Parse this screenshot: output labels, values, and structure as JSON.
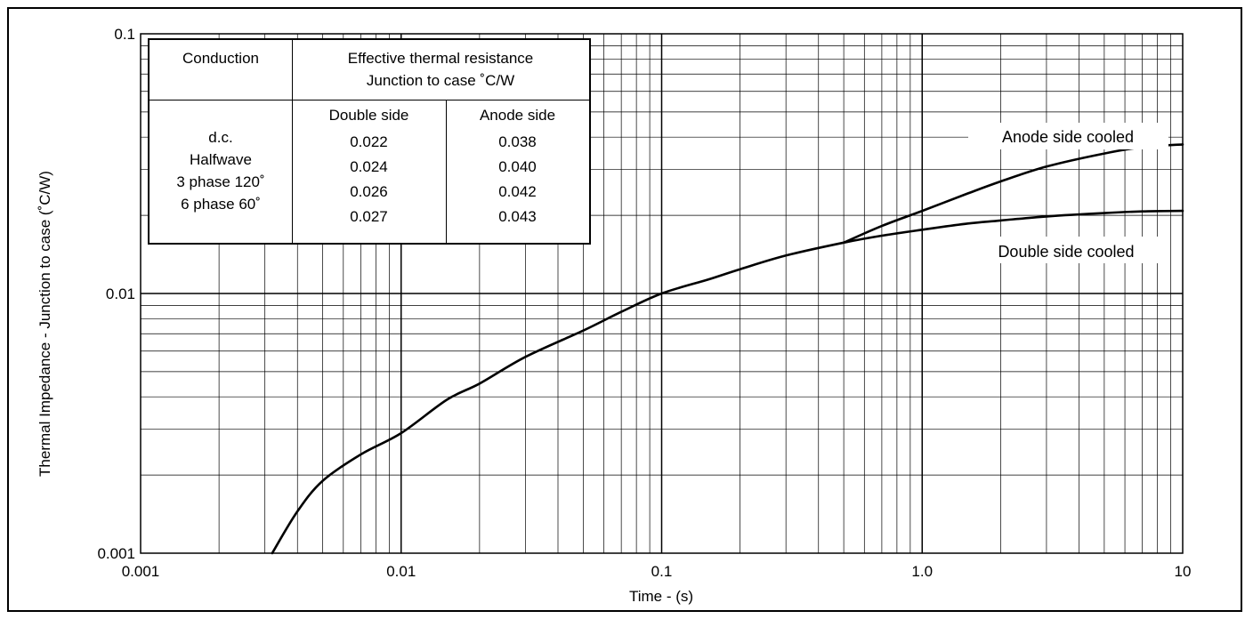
{
  "chart_data": {
    "type": "line",
    "xlabel": "Time - (s)",
    "ylabel": "Thermal Impedance - Junction to case (˚C/W)",
    "x_scale": "log",
    "y_scale": "log",
    "xlim": [
      0.001,
      10
    ],
    "ylim": [
      0.001,
      0.1
    ],
    "x_ticks": [
      "0.001",
      "0.01",
      "0.1",
      "1.0",
      "10"
    ],
    "y_ticks": [
      "0.001",
      "0.01",
      "0.1"
    ],
    "grid": true,
    "series": [
      {
        "name": "Double side cooled",
        "x": [
          0.0032,
          0.004,
          0.005,
          0.007,
          0.01,
          0.015,
          0.02,
          0.03,
          0.05,
          0.07,
          0.1,
          0.15,
          0.2,
          0.3,
          0.5,
          0.7,
          1.0,
          1.5,
          2,
          3,
          5,
          7,
          10
        ],
        "y": [
          0.001,
          0.00145,
          0.0019,
          0.0024,
          0.0029,
          0.0039,
          0.0045,
          0.0057,
          0.0072,
          0.0085,
          0.01,
          0.0113,
          0.0124,
          0.014,
          0.0157,
          0.0167,
          0.0176,
          0.0186,
          0.0191,
          0.0198,
          0.0204,
          0.0207,
          0.0208
        ]
      },
      {
        "name": "Anode side cooled",
        "x": [
          0.5,
          0.7,
          1.0,
          1.5,
          2,
          3,
          5,
          7,
          10
        ],
        "y": [
          0.0157,
          0.0182,
          0.0208,
          0.0243,
          0.027,
          0.0308,
          0.0346,
          0.0366,
          0.0375
        ]
      }
    ],
    "curve_labels": {
      "anode": "Anode side cooled",
      "double": "Double side cooled"
    },
    "table": {
      "header_col1": "Conduction",
      "header_col2_line1": "Effective thermal resistance",
      "header_col2_line2": "Junction to case ˚C/W",
      "sub_double": "Double side",
      "sub_anode": "Anode side",
      "rows": [
        {
          "conduction": "d.c.",
          "double": "0.022",
          "anode": "0.038"
        },
        {
          "conduction": "Halfwave",
          "double": "0.024",
          "anode": "0.040"
        },
        {
          "conduction": "3 phase 120˚",
          "double": "0.026",
          "anode": "0.042"
        },
        {
          "conduction": "6 phase 60˚",
          "double": "0.027",
          "anode": "0.043"
        }
      ]
    }
  }
}
